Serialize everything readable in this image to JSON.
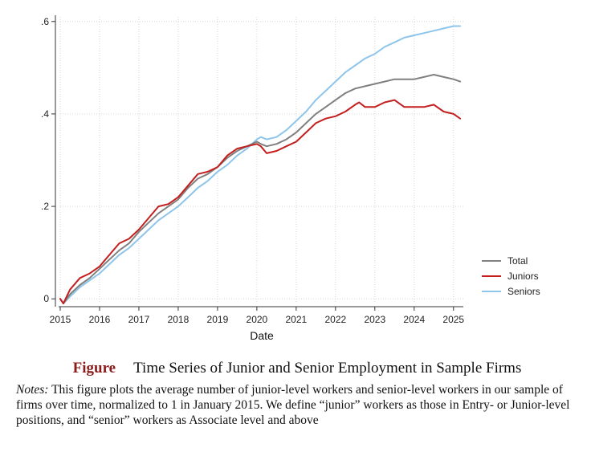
{
  "chart_data": {
    "type": "line",
    "xlabel": "Date",
    "ylabel": "",
    "xlim": [
      2015,
      2025.25
    ],
    "ylim": [
      -0.01,
      0.61
    ],
    "x_ticks": [
      2015,
      2016,
      2017,
      2018,
      2019,
      2020,
      2021,
      2022,
      2023,
      2024,
      2025
    ],
    "x_tick_labels": [
      "2015",
      "2016",
      "2017",
      "2018",
      "2019",
      "2020",
      "2021",
      "2022",
      "2023",
      "2024",
      "2025"
    ],
    "y_ticks": [
      0,
      0.2,
      0.4,
      0.6
    ],
    "y_tick_labels": [
      "0",
      ".2",
      ".4",
      ".6"
    ],
    "grid": true,
    "legend_position": "right",
    "series": [
      {
        "name": "Total",
        "color": "#808080",
        "x": [
          2015.0,
          2015.08,
          2015.25,
          2015.5,
          2015.75,
          2016.0,
          2016.25,
          2016.5,
          2016.75,
          2017.0,
          2017.25,
          2017.5,
          2017.75,
          2018.0,
          2018.25,
          2018.5,
          2018.75,
          2019.0,
          2019.25,
          2019.5,
          2019.75,
          2020.0,
          2020.1,
          2020.25,
          2020.5,
          2020.75,
          2021.0,
          2021.25,
          2021.5,
          2021.75,
          2022.0,
          2022.25,
          2022.5,
          2022.75,
          2023.0,
          2023.25,
          2023.5,
          2023.75,
          2024.0,
          2024.25,
          2024.5,
          2024.75,
          2025.0,
          2025.17
        ],
        "values": [
          0.0,
          -0.01,
          0.01,
          0.03,
          0.045,
          0.065,
          0.085,
          0.105,
          0.12,
          0.145,
          0.165,
          0.185,
          0.2,
          0.215,
          0.24,
          0.26,
          0.27,
          0.285,
          0.305,
          0.32,
          0.33,
          0.34,
          0.335,
          0.33,
          0.335,
          0.345,
          0.36,
          0.38,
          0.4,
          0.415,
          0.43,
          0.445,
          0.455,
          0.46,
          0.465,
          0.47,
          0.475,
          0.475,
          0.475,
          0.48,
          0.485,
          0.48,
          0.475,
          0.47
        ]
      },
      {
        "name": "Juniors",
        "color": "#c41e1e",
        "x": [
          2015.0,
          2015.08,
          2015.25,
          2015.5,
          2015.75,
          2016.0,
          2016.25,
          2016.5,
          2016.75,
          2017.0,
          2017.25,
          2017.5,
          2017.75,
          2018.0,
          2018.25,
          2018.5,
          2018.75,
          2019.0,
          2019.25,
          2019.5,
          2019.75,
          2020.0,
          2020.1,
          2020.25,
          2020.5,
          2020.75,
          2021.0,
          2021.25,
          2021.5,
          2021.75,
          2022.0,
          2022.25,
          2022.5,
          2022.6,
          2022.75,
          2023.0,
          2023.25,
          2023.5,
          2023.75,
          2024.0,
          2024.25,
          2024.5,
          2024.75,
          2025.0,
          2025.17
        ],
        "values": [
          0.0,
          -0.01,
          0.02,
          0.045,
          0.055,
          0.07,
          0.095,
          0.12,
          0.13,
          0.15,
          0.175,
          0.2,
          0.205,
          0.22,
          0.245,
          0.27,
          0.275,
          0.285,
          0.31,
          0.325,
          0.33,
          0.335,
          0.33,
          0.315,
          0.32,
          0.33,
          0.34,
          0.36,
          0.38,
          0.39,
          0.395,
          0.405,
          0.42,
          0.425,
          0.415,
          0.415,
          0.425,
          0.43,
          0.415,
          0.415,
          0.415,
          0.42,
          0.405,
          0.4,
          0.39
        ]
      },
      {
        "name": "Seniors",
        "color": "#8ec5ea",
        "x": [
          2015.0,
          2015.08,
          2015.25,
          2015.5,
          2015.75,
          2016.0,
          2016.25,
          2016.5,
          2016.75,
          2017.0,
          2017.25,
          2017.5,
          2017.75,
          2018.0,
          2018.25,
          2018.5,
          2018.75,
          2019.0,
          2019.25,
          2019.5,
          2019.75,
          2020.0,
          2020.1,
          2020.25,
          2020.5,
          2020.75,
          2021.0,
          2021.25,
          2021.5,
          2021.75,
          2022.0,
          2022.25,
          2022.5,
          2022.75,
          2023.0,
          2023.25,
          2023.5,
          2023.75,
          2024.0,
          2024.25,
          2024.5,
          2024.75,
          2025.0,
          2025.17
        ],
        "values": [
          0.0,
          -0.01,
          0.005,
          0.025,
          0.04,
          0.055,
          0.075,
          0.095,
          0.11,
          0.13,
          0.15,
          0.17,
          0.185,
          0.2,
          0.22,
          0.24,
          0.255,
          0.275,
          0.29,
          0.31,
          0.325,
          0.345,
          0.35,
          0.345,
          0.35,
          0.365,
          0.385,
          0.405,
          0.43,
          0.45,
          0.47,
          0.49,
          0.505,
          0.52,
          0.53,
          0.545,
          0.555,
          0.565,
          0.57,
          0.575,
          0.58,
          0.585,
          0.59,
          0.59
        ]
      }
    ]
  },
  "caption": {
    "figure_label": "Figure",
    "title": "Time Series of Junior and Senior Employment in Sample Firms",
    "notes_label": "Notes:",
    "notes_text": "This figure plots the average number of junior-level workers and senior-level workers in our sample of firms over time, normalized to 1 in January 2015. We define “junior” workers as those in Entry- or Junior-level positions, and “senior” workers as Associate level and above"
  }
}
